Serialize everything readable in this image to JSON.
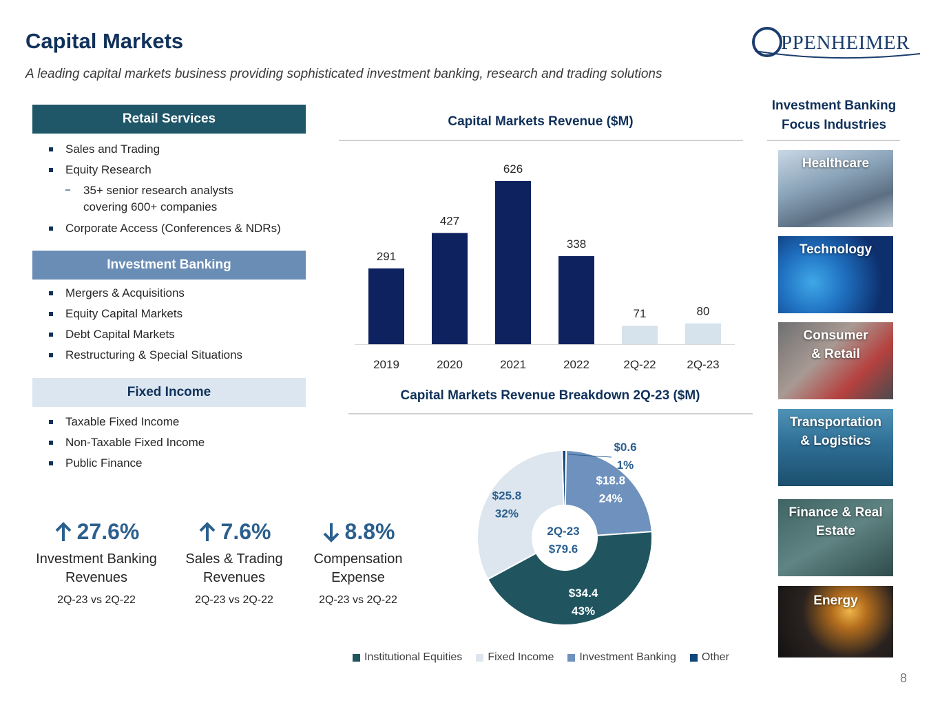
{
  "header": {
    "title": "Capital Markets",
    "subtitle": "A leading capital markets business providing sophisticated investment banking, research and trading solutions",
    "logo_text": "PPENHEIMER"
  },
  "sections": {
    "retail": {
      "label": "Retail Services",
      "items": [
        "Sales and Trading",
        "Equity Research"
      ],
      "sub_item_line1": "35+ senior research analysts",
      "sub_item_line2": "covering 600+ companies",
      "last_item": "Corporate Access (Conferences & NDRs)"
    },
    "investment_banking": {
      "label": "Investment Banking",
      "items": [
        "Mergers & Acquisitions",
        "Equity Capital Markets",
        "Debt Capital Markets",
        "Restructuring & Special Situations"
      ]
    },
    "fixed_income": {
      "label": "Fixed Income",
      "items": [
        "Taxable Fixed Income",
        "Non-Taxable Fixed Income",
        "Public Finance"
      ]
    }
  },
  "kpis": [
    {
      "direction": "up",
      "value": "27.6%",
      "label_line1": "Investment Banking",
      "label_line2": "Revenues",
      "period": "2Q-23 vs 2Q-22"
    },
    {
      "direction": "up",
      "value": "7.6%",
      "label_line1": "Sales & Trading",
      "label_line2": "Revenues",
      "period": "2Q-23 vs 2Q-22"
    },
    {
      "direction": "down",
      "value": "8.8%",
      "label_line1": "Compensation",
      "label_line2": "Expense",
      "period": "2Q-23 vs 2Q-22"
    }
  ],
  "chart_data": [
    {
      "type": "bar",
      "title": "Capital Markets Revenue ($M)",
      "categories": [
        "2019",
        "2020",
        "2021",
        "2022",
        "2Q-22",
        "2Q-23"
      ],
      "values": [
        291,
        427,
        626,
        338,
        71,
        80
      ],
      "value_labels": [
        "291",
        "427",
        "626",
        "338",
        "71",
        "80"
      ],
      "bar_colors": [
        "#0e2260",
        "#0e2260",
        "#0e2260",
        "#0e2260",
        "#d6e2ec",
        "#d6e2ec"
      ],
      "xlabel": "",
      "ylabel": "",
      "ylim": [
        0,
        626
      ]
    },
    {
      "type": "pie",
      "title": "Capital Markets Revenue Breakdown 2Q-23 ($M)",
      "center_label_line1": "2Q-23",
      "center_label_line2": "$79.6",
      "slices": [
        {
          "name": "Other",
          "value": 0.6,
          "label_value": "$0.6",
          "label_pct": "1%",
          "color": "#10467a"
        },
        {
          "name": "Investment Banking",
          "value": 18.8,
          "label_value": "$18.8",
          "label_pct": "24%",
          "color": "#6f91bd"
        },
        {
          "name": "Institutional Equities",
          "value": 34.4,
          "label_value": "$34.4",
          "label_pct": "43%",
          "color": "#20555f"
        },
        {
          "name": "Fixed Income",
          "value": 25.8,
          "label_value": "$25.8",
          "label_pct": "32%",
          "color": "#dde6ef"
        }
      ],
      "legend": [
        "Institutional Equities",
        "Fixed Income",
        "Investment Banking",
        "Other"
      ]
    }
  ],
  "focus": {
    "title_line1": "Investment Banking",
    "title_line2": "Focus Industries",
    "tiles": [
      {
        "line1": "Healthcare",
        "line2": ""
      },
      {
        "line1": "Technology",
        "line2": ""
      },
      {
        "line1": "Consumer",
        "line2": "& Retail"
      },
      {
        "line1": "Transportation",
        "line2": "& Logistics"
      },
      {
        "line1": "Finance & Real",
        "line2": "Estate"
      },
      {
        "line1": "Energy",
        "line2": ""
      }
    ]
  },
  "page_number": "8"
}
